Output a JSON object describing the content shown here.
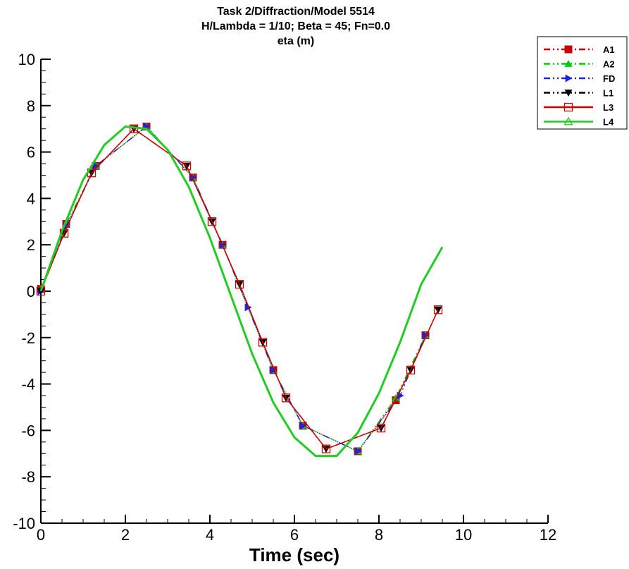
{
  "chart_data": {
    "type": "line",
    "title_lines": [
      "Task 2/Diffraction/Model 5514",
      "H/Lambda = 1/10; Beta =  45; Fn=0.0",
      "eta (m)"
    ],
    "xlabel": "Time (sec)",
    "ylabel": "",
    "xlim": [
      0,
      12
    ],
    "ylim": [
      -10,
      10
    ],
    "x_ticks": [
      0,
      2,
      4,
      6,
      8,
      10,
      12
    ],
    "y_ticks": [
      -10,
      -8,
      -6,
      -4,
      -2,
      0,
      2,
      4,
      6,
      8,
      10
    ],
    "x_tick_labels": [
      "0",
      "2",
      "4",
      "6",
      "8",
      "10",
      "12"
    ],
    "y_tick_labels": [
      "-10",
      "-8",
      "-6",
      "-4",
      "-2",
      "0",
      "2",
      "4",
      "6",
      "8",
      "10"
    ],
    "grid": false,
    "legend_position": "top-right",
    "series": [
      {
        "name": "A1",
        "color": "#cc0000",
        "line_style": "dash-dot-dot",
        "marker": "filled-square",
        "x": [
          0.0,
          0.6,
          1.3,
          2.5,
          3.6,
          4.3,
          5.5,
          6.2,
          7.5,
          8.4,
          9.1
        ],
        "y": [
          0.1,
          2.9,
          5.4,
          7.1,
          4.9,
          2.0,
          -3.4,
          -5.8,
          -6.9,
          -4.7,
          -1.9
        ]
      },
      {
        "name": "A2",
        "color": "#00cc00",
        "line_style": "dash-dot-dot",
        "marker": "filled-triangle-up",
        "x": [
          0.0,
          0.6,
          1.3,
          2.5,
          3.6,
          4.3,
          5.5,
          6.2,
          7.5,
          8.4,
          9.1
        ],
        "y": [
          0.1,
          2.9,
          5.4,
          7.1,
          4.9,
          2.0,
          -3.4,
          -5.8,
          -6.9,
          -4.6,
          -1.9
        ]
      },
      {
        "name": "FD",
        "color": "#2222dd",
        "line_style": "dash-dot-dot",
        "marker": "filled-triangle-right",
        "x": [
          0.0,
          0.6,
          1.3,
          2.5,
          3.6,
          4.3,
          4.9,
          5.5,
          6.2,
          7.5,
          8.5,
          9.1
        ],
        "y": [
          0.0,
          2.8,
          5.4,
          7.1,
          4.9,
          2.0,
          -0.7,
          -3.4,
          -5.8,
          -6.9,
          -4.5,
          -1.9
        ]
      },
      {
        "name": "L1",
        "color": "#000000",
        "line_style": "dash-dot-dot",
        "marker": "filled-triangle-down",
        "x": [
          0.0,
          0.55,
          1.2,
          2.2,
          3.45,
          4.05,
          4.7,
          5.25,
          5.8,
          6.75,
          8.05,
          8.75,
          9.4
        ],
        "y": [
          0.0,
          2.5,
          5.1,
          7.0,
          5.4,
          3.0,
          0.3,
          -2.2,
          -4.6,
          -6.8,
          -5.9,
          -3.4,
          -0.8
        ]
      },
      {
        "name": "L3",
        "color": "#cc0000",
        "line_style": "solid",
        "marker": "open-square",
        "x": [
          0.0,
          0.55,
          1.2,
          2.2,
          3.45,
          4.05,
          4.7,
          5.25,
          5.8,
          6.75,
          8.05,
          8.75,
          9.4
        ],
        "y": [
          0.0,
          2.5,
          5.1,
          7.0,
          5.4,
          3.0,
          0.3,
          -2.2,
          -4.6,
          -6.8,
          -5.9,
          -3.4,
          -0.8
        ]
      },
      {
        "name": "L4",
        "color": "#22cc22",
        "line_style": "solid",
        "marker": "open-triangle-up",
        "x": [
          0.0,
          0.5,
          1.0,
          1.5,
          2.0,
          2.5,
          3.0,
          3.5,
          4.0,
          4.5,
          5.0,
          5.5,
          6.0,
          6.5,
          7.0,
          7.5,
          8.0,
          8.5,
          9.0,
          9.5
        ],
        "y": [
          0.0,
          2.6,
          4.8,
          6.3,
          7.1,
          7.0,
          6.1,
          4.5,
          2.3,
          -0.2,
          -2.7,
          -4.8,
          -6.3,
          -7.1,
          -7.1,
          -6.1,
          -4.4,
          -2.2,
          0.3,
          1.9
        ]
      }
    ]
  }
}
